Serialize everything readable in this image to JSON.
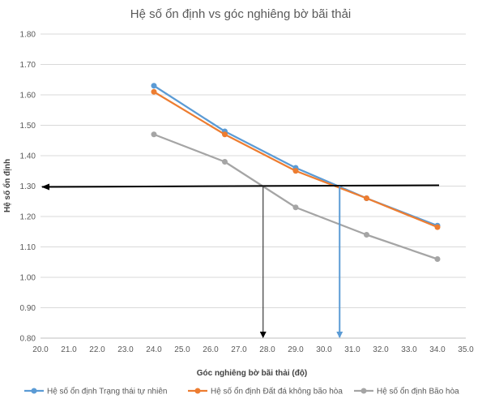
{
  "chart_data": {
    "type": "line",
    "title": "Hệ số ổn định vs góc nghiêng bờ bãi thải",
    "xlabel": "Góc nghiêng bờ bãi thải (độ)",
    "ylabel": "Hệ số ổn định",
    "xlim": [
      20.0,
      35.0
    ],
    "ylim": [
      0.8,
      1.8
    ],
    "xticks": [
      "20.0",
      "21.0",
      "22.0",
      "23.0",
      "24.0",
      "25.0",
      "26.0",
      "27.0",
      "28.0",
      "29.0",
      "30.0",
      "31.0",
      "32.0",
      "33.0",
      "34.0",
      "35.0"
    ],
    "yticks": [
      "0.80",
      "0.90",
      "1.00",
      "1.10",
      "1.20",
      "1.30",
      "1.40",
      "1.50",
      "1.60",
      "1.70",
      "1.80"
    ],
    "grid": "horizontal",
    "legend_position": "bottom",
    "series": [
      {
        "name": "Hệ số ổn định Trạng thái tự nhiên",
        "color": "#5B9BD5",
        "x": [
          24.0,
          26.5,
          29.0,
          31.5,
          34.0
        ],
        "y": [
          1.63,
          1.48,
          1.36,
          1.26,
          1.17
        ]
      },
      {
        "name": "Hệ số ổn định Đất đá không bão hòa",
        "color": "#ED7D31",
        "x": [
          24.0,
          26.5,
          29.0,
          31.5,
          34.0
        ],
        "y": [
          1.61,
          1.47,
          1.35,
          1.26,
          1.165
        ]
      },
      {
        "name": "Hệ số ổn định Bão hòa",
        "color": "#A5A5A5",
        "x": [
          24.0,
          26.5,
          29.0,
          31.5,
          34.0
        ],
        "y": [
          1.47,
          1.38,
          1.23,
          1.14,
          1.06
        ]
      }
    ],
    "annotations": [
      {
        "type": "horizontal-arrow",
        "y": 1.3,
        "x_from": 34.0,
        "x_to": 20.0,
        "color": "#000000"
      },
      {
        "type": "vertical-arrow",
        "x": 27.85,
        "y_from": 1.3,
        "y_to": 0.8,
        "color": "#404040"
      },
      {
        "type": "vertical-arrow",
        "x": 30.55,
        "y_from": 1.3,
        "y_to": 0.8,
        "color": "#5B9BD5"
      }
    ]
  }
}
